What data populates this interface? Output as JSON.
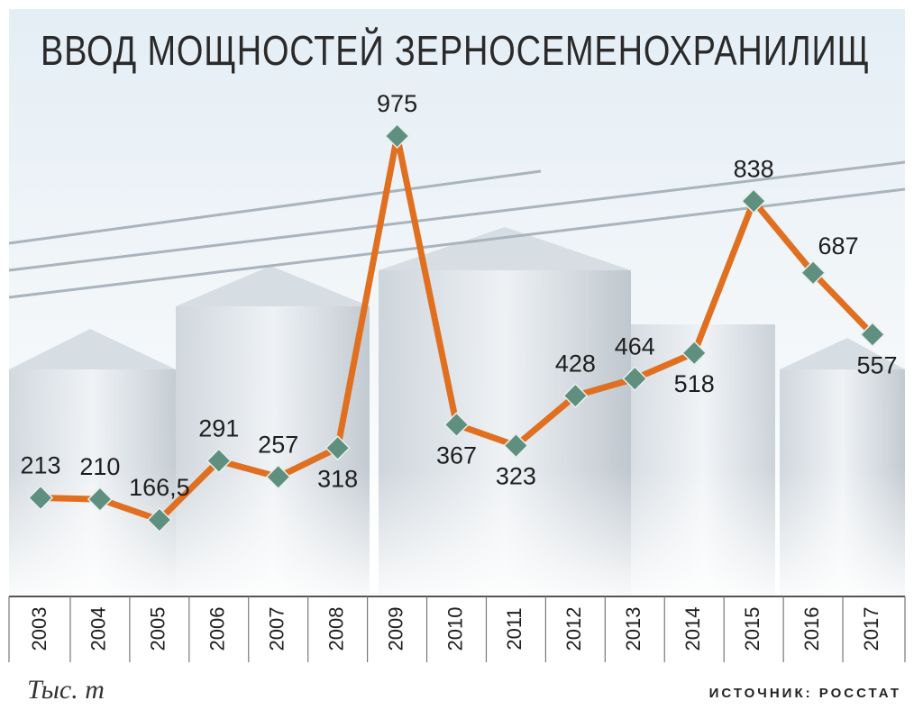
{
  "chart_data": {
    "type": "line",
    "title": "ВВОД МОЩНОСТЕЙ ЗЕРНОСЕМЕНОХРАНИЛИЩ",
    "categories": [
      "2003",
      "2004",
      "2005",
      "2006",
      "2007",
      "2008",
      "2009",
      "2010",
      "2011",
      "2012",
      "2013",
      "2014",
      "2015",
      "2016",
      "2017"
    ],
    "values": [
      213,
      210,
      166.5,
      291,
      257,
      318,
      975,
      367,
      323,
      428,
      464,
      518,
      838,
      687,
      557
    ],
    "value_labels": [
      "213",
      "210",
      "166,5",
      "291",
      "257",
      "318",
      "975",
      "367",
      "323",
      "428",
      "464",
      "518",
      "838",
      "687",
      "557"
    ],
    "color": "#e07020",
    "marker_color": "#5f8f7f",
    "unit_label": "Тыс. т",
    "source": "ИСТОЧНИК: РОССТАТ"
  }
}
